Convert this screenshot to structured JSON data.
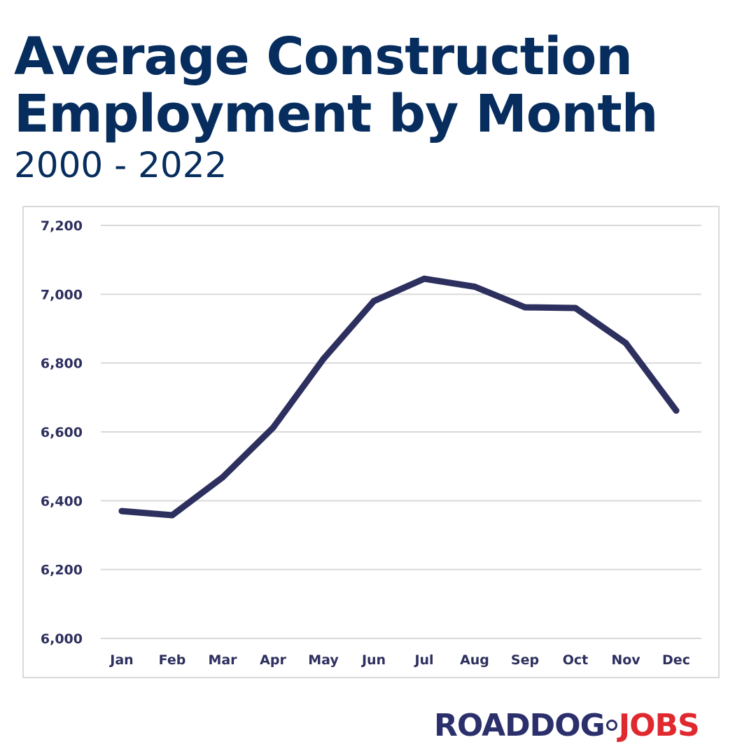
{
  "header": {
    "title_line1": "Average Construction",
    "title_line2": "Employment by Month",
    "subtitle": "2000 - 2022"
  },
  "brand": {
    "part1": "ROADDOG",
    "part2": "JOBS",
    "colors": {
      "primary": "#2b2f6b",
      "accent": "#e0282f"
    }
  },
  "colors": {
    "title": "#062d5e",
    "line": "#2d2f5e",
    "grid": "#d9d9d9"
  },
  "chart_data": {
    "type": "line",
    "categories": [
      "Jan",
      "Feb",
      "Mar",
      "Apr",
      "May",
      "Jun",
      "Jul",
      "Aug",
      "Sep",
      "Oct",
      "Nov",
      "Dec"
    ],
    "series": [
      {
        "values": [
          6370,
          6358,
          6468,
          6612,
          6812,
          6980,
          7045,
          7022,
          6962,
          6960,
          6858,
          6662
        ]
      }
    ],
    "ylim": [
      6000,
      7200
    ],
    "yticks": [
      6000,
      6200,
      6400,
      6600,
      6800,
      7000,
      7200
    ],
    "ytick_labels": [
      "6,000",
      "6,200",
      "6,400",
      "6,600",
      "6,800",
      "7,000",
      "7,200"
    ],
    "grid": true,
    "legend": "none"
  }
}
